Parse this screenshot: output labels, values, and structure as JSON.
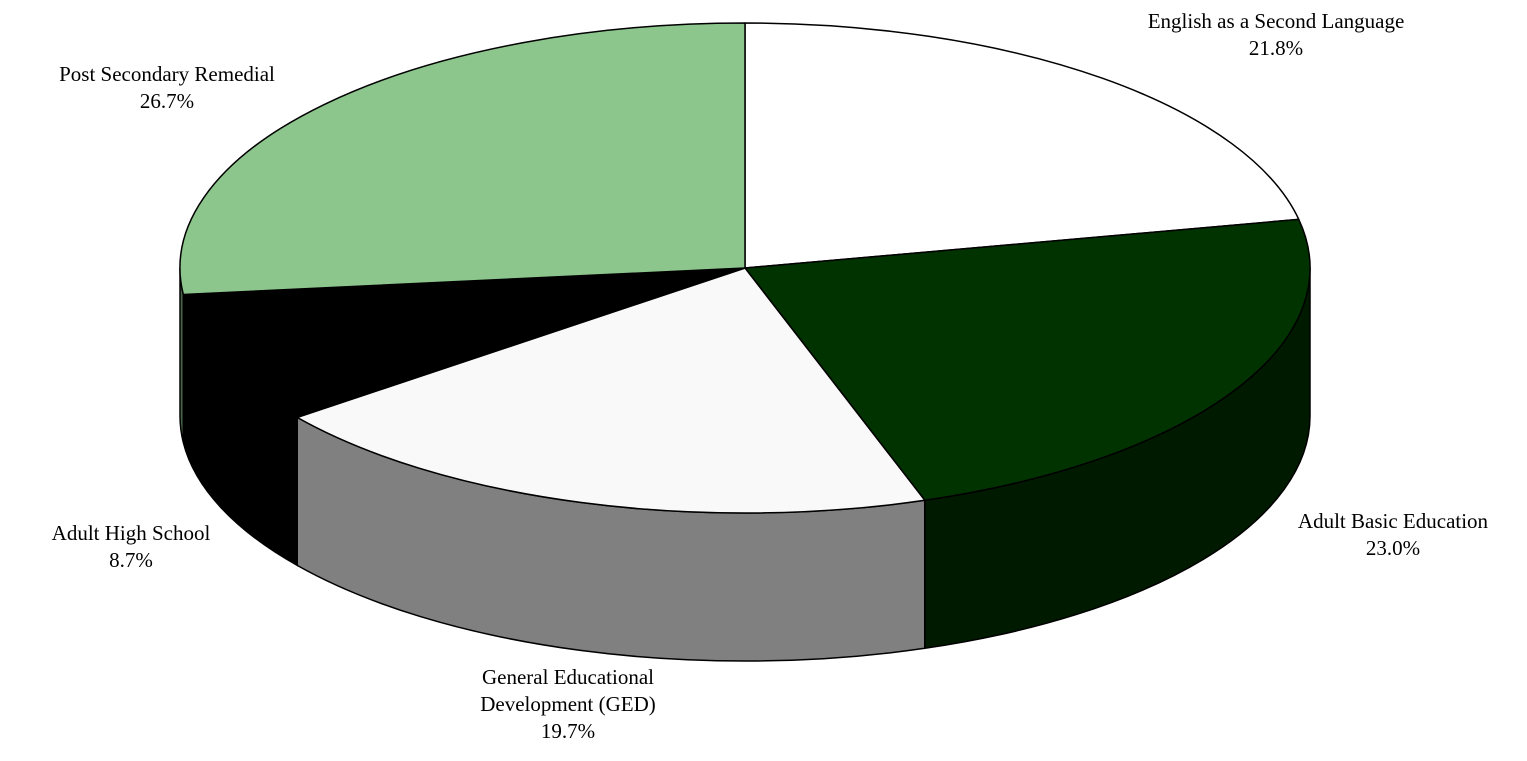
{
  "chart_data": {
    "type": "pie",
    "style": "3d",
    "start_angle_degrees": 90,
    "direction": "clockwise",
    "slices": [
      {
        "name": "English as a Second Language",
        "value": 21.8,
        "percent_label": "21.8%",
        "color": "#ffffff",
        "side_color": "#cccccc"
      },
      {
        "name": "Adult Basic Education",
        "value": 23.0,
        "percent_label": "23.0%",
        "color": "#003300",
        "side_color": "#001a00"
      },
      {
        "name": "General Educational Development (GED)",
        "label_lines": [
          "General Educational",
          "Development (GED)"
        ],
        "value": 19.7,
        "percent_label": "19.7%",
        "color": "#f9f9f9",
        "side_color": "#808080"
      },
      {
        "name": "Adult High School",
        "value": 8.7,
        "percent_label": "8.7%",
        "color": "#000000",
        "side_color": "#000000"
      },
      {
        "name": "Post Secondary Remedial",
        "value": 26.7,
        "percent_label": "26.7%",
        "color": "#8cc68c",
        "side_color": "#466346"
      }
    ]
  }
}
